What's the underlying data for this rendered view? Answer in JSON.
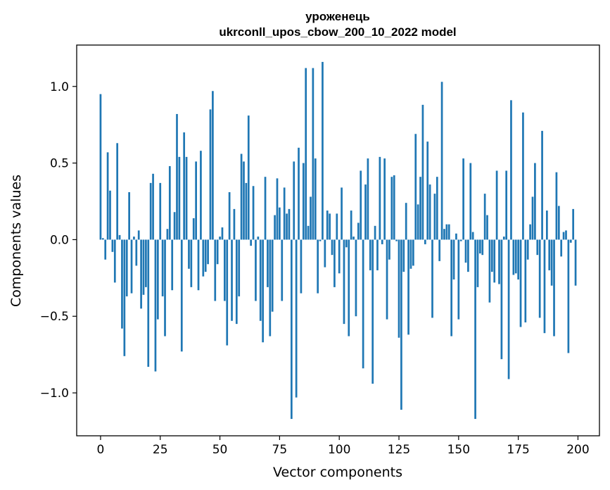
{
  "chart_data": {
    "type": "bar",
    "title_lines": [
      "уроженець",
      "ukrconll_upos_cbow_200_10_2022 model"
    ],
    "xlabel": "Vector components",
    "ylabel": "Components values",
    "xlim": [
      -10,
      209
    ],
    "ylim": [
      -1.28,
      1.27
    ],
    "x_ticks": [
      0,
      25,
      50,
      75,
      100,
      125,
      150,
      175,
      200
    ],
    "x_tick_labels": [
      "0",
      "25",
      "50",
      "75",
      "100",
      "125",
      "150",
      "175",
      "200"
    ],
    "y_ticks": [
      -1.0,
      -0.5,
      0.0,
      0.5,
      1.0
    ],
    "y_tick_labels": [
      "−1.0",
      "−0.5",
      "0.0",
      "0.5",
      "1.0"
    ],
    "bar_color": "#1f77b4",
    "values": [
      0.95,
      0.01,
      -0.13,
      0.57,
      0.32,
      -0.08,
      -0.28,
      0.63,
      0.03,
      -0.58,
      -0.76,
      -0.37,
      0.31,
      -0.35,
      0.02,
      -0.17,
      0.06,
      -0.45,
      -0.36,
      -0.31,
      -0.83,
      0.37,
      0.43,
      -0.86,
      -0.52,
      0.37,
      -0.37,
      -0.63,
      0.07,
      0.48,
      -0.33,
      0.18,
      0.82,
      0.54,
      -0.73,
      0.7,
      0.54,
      -0.19,
      -0.31,
      0.14,
      0.51,
      -0.33,
      0.58,
      -0.24,
      -0.21,
      -0.16,
      0.85,
      0.97,
      -0.4,
      -0.16,
      0.02,
      0.08,
      -0.4,
      -0.69,
      0.31,
      -0.53,
      0.2,
      -0.55,
      -0.37,
      0.56,
      0.51,
      0.37,
      0.81,
      -0.04,
      0.35,
      -0.4,
      0.02,
      -0.53,
      -0.67,
      0.41,
      -0.31,
      -0.63,
      -0.47,
      0.16,
      0.4,
      0.21,
      -0.4,
      0.34,
      0.17,
      0.2,
      -1.17,
      0.51,
      -1.03,
      0.6,
      -0.35,
      0.5,
      1.12,
      0.09,
      0.28,
      1.12,
      0.53,
      -0.35,
      -0.01,
      1.16,
      -0.18,
      0.19,
      0.17,
      -0.1,
      -0.31,
      0.17,
      -0.22,
      0.34,
      -0.55,
      -0.05,
      -0.63,
      0.19,
      0.02,
      -0.5,
      0.11,
      0.45,
      -0.84,
      0.36,
      0.53,
      -0.2,
      -0.94,
      0.09,
      -0.2,
      0.54,
      -0.03,
      0.53,
      -0.52,
      -0.13,
      0.41,
      0.42,
      -0.01,
      -0.64,
      -1.11,
      -0.21,
      0.24,
      -0.62,
      -0.19,
      -0.17,
      0.69,
      0.23,
      0.41,
      0.88,
      -0.03,
      0.64,
      0.36,
      -0.51,
      0.3,
      0.41,
      -0.14,
      1.03,
      0.07,
      0.1,
      0.1,
      -0.63,
      -0.26,
      0.04,
      -0.52,
      -0.01,
      0.53,
      -0.15,
      -0.21,
      0.5,
      0.05,
      -1.17,
      -0.31,
      -0.09,
      -0.1,
      0.3,
      0.16,
      -0.41,
      -0.21,
      -0.28,
      0.45,
      -0.29,
      -0.78,
      0.02,
      0.45,
      -0.91,
      0.91,
      -0.23,
      -0.22,
      -0.26,
      -0.57,
      0.83,
      -0.54,
      -0.13,
      0.1,
      0.28,
      0.5,
      -0.1,
      -0.51,
      0.71,
      -0.61,
      0.19,
      -0.2,
      -0.3,
      -0.63,
      0.44,
      0.22,
      -0.11,
      0.05,
      0.06,
      -0.74,
      -0.02,
      0.2,
      -0.3
    ]
  }
}
